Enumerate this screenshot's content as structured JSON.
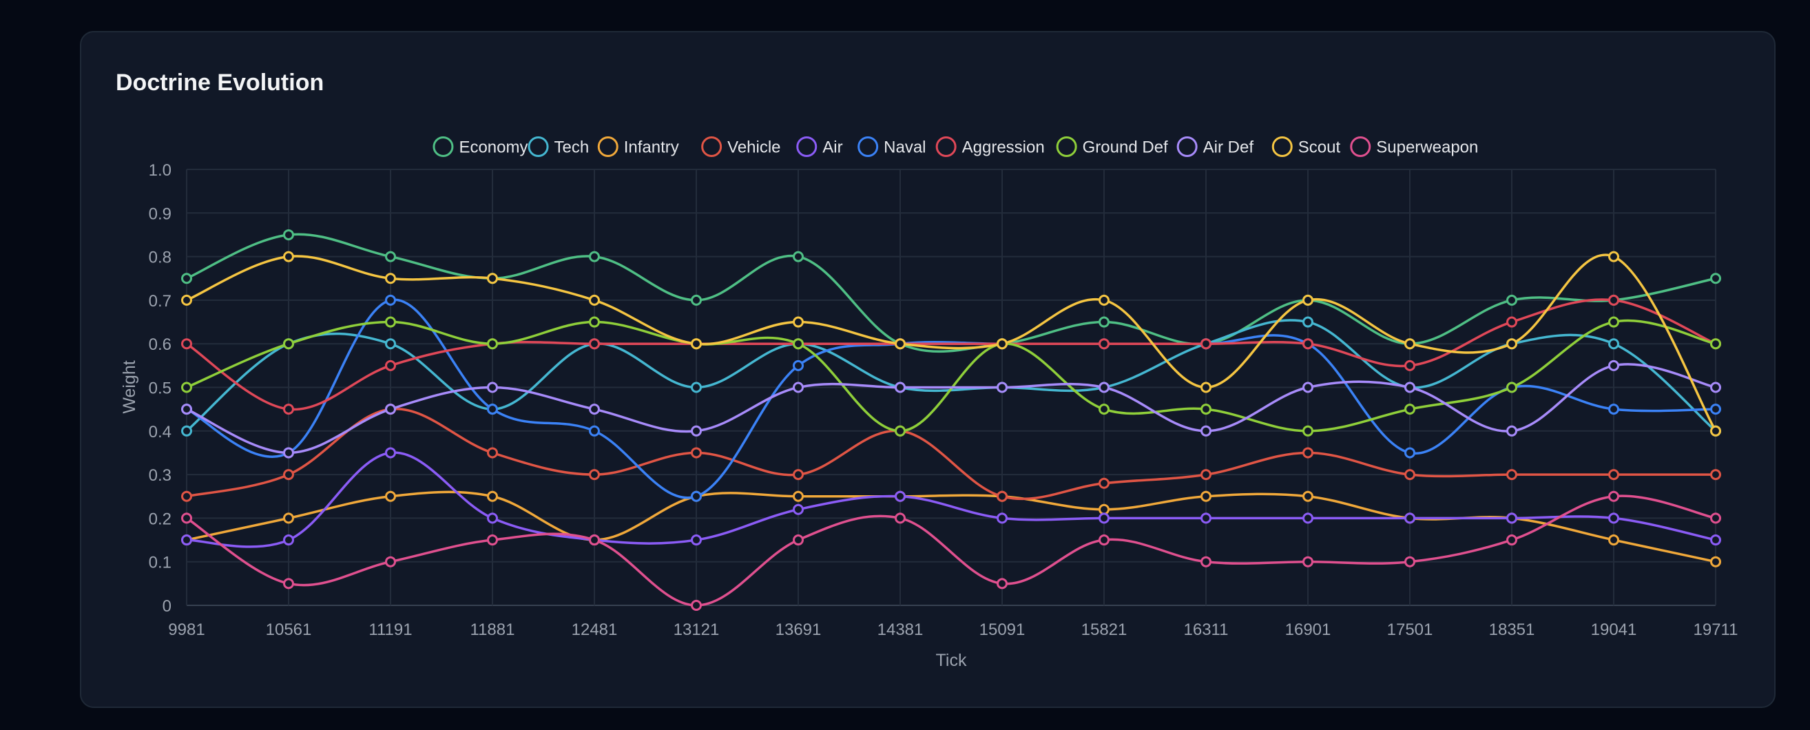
{
  "card": {
    "title": "Doctrine Evolution"
  },
  "chart_data": {
    "type": "line",
    "title": "Doctrine Evolution",
    "xlabel": "Tick",
    "ylabel": "Weight",
    "ylim": [
      0,
      1
    ],
    "yticks": [
      "0",
      "0.1",
      "0.2",
      "0.3",
      "0.4",
      "0.5",
      "0.6",
      "0.7",
      "0.8",
      "0.9",
      "1.0"
    ],
    "grid": true,
    "legend": "top-center",
    "categories": [
      "9981",
      "10561",
      "11191",
      "11881",
      "12481",
      "13121",
      "13691",
      "14381",
      "15091",
      "15821",
      "16311",
      "16901",
      "17501",
      "18351",
      "19041",
      "19711"
    ],
    "series": [
      {
        "name": "Economy",
        "color": "#4fbf85",
        "values": [
          0.75,
          0.85,
          0.8,
          0.75,
          0.8,
          0.7,
          0.8,
          0.6,
          0.6,
          0.65,
          0.6,
          0.7,
          0.6,
          0.7,
          0.7,
          0.75
        ]
      },
      {
        "name": "Tech",
        "color": "#45b7d1",
        "values": [
          0.4,
          0.6,
          0.6,
          0.45,
          0.6,
          0.5,
          0.6,
          0.5,
          0.5,
          0.5,
          0.6,
          0.65,
          0.5,
          0.6,
          0.6,
          0.4
        ]
      },
      {
        "name": "Infantry",
        "color": "#f0a83a",
        "values": [
          0.15,
          0.2,
          0.25,
          0.25,
          0.15,
          0.25,
          0.25,
          0.25,
          0.25,
          0.22,
          0.25,
          0.25,
          0.2,
          0.2,
          0.15,
          0.1
        ]
      },
      {
        "name": "Vehicle",
        "color": "#e05545",
        "values": [
          0.25,
          0.3,
          0.45,
          0.35,
          0.3,
          0.35,
          0.3,
          0.4,
          0.25,
          0.28,
          0.3,
          0.35,
          0.3,
          0.3,
          0.3,
          0.3
        ]
      },
      {
        "name": "Air",
        "color": "#8b5cf6",
        "values": [
          0.15,
          0.15,
          0.35,
          0.2,
          0.15,
          0.15,
          0.22,
          0.25,
          0.2,
          0.2,
          0.2,
          0.2,
          0.2,
          0.2,
          0.2,
          0.15
        ]
      },
      {
        "name": "Naval",
        "color": "#3b82f6",
        "values": [
          0.45,
          0.35,
          0.7,
          0.45,
          0.4,
          0.25,
          0.55,
          0.6,
          0.6,
          0.6,
          0.6,
          0.6,
          0.35,
          0.5,
          0.45,
          0.45
        ]
      },
      {
        "name": "Aggression",
        "color": "#e04858",
        "values": [
          0.6,
          0.45,
          0.55,
          0.6,
          0.6,
          0.6,
          0.6,
          0.6,
          0.6,
          0.6,
          0.6,
          0.6,
          0.55,
          0.65,
          0.7,
          0.6
        ]
      },
      {
        "name": "Ground Def",
        "color": "#8fcf3a",
        "values": [
          0.5,
          0.6,
          0.65,
          0.6,
          0.65,
          0.6,
          0.6,
          0.4,
          0.6,
          0.45,
          0.45,
          0.4,
          0.45,
          0.5,
          0.65,
          0.6
        ]
      },
      {
        "name": "Air Def",
        "color": "#a78bfa",
        "values": [
          0.45,
          0.35,
          0.45,
          0.5,
          0.45,
          0.4,
          0.5,
          0.5,
          0.5,
          0.5,
          0.4,
          0.5,
          0.5,
          0.4,
          0.55,
          0.5
        ]
      },
      {
        "name": "Scout",
        "color": "#f5c542",
        "values": [
          0.7,
          0.8,
          0.75,
          0.75,
          0.7,
          0.6,
          0.65,
          0.6,
          0.6,
          0.7,
          0.5,
          0.7,
          0.6,
          0.6,
          0.8,
          0.4
        ]
      },
      {
        "name": "Superweapon",
        "color": "#e0508f",
        "values": [
          0.2,
          0.05,
          0.1,
          0.15,
          0.15,
          0.0,
          0.15,
          0.2,
          0.05,
          0.15,
          0.1,
          0.1,
          0.1,
          0.15,
          0.25,
          0.2
        ]
      }
    ]
  }
}
